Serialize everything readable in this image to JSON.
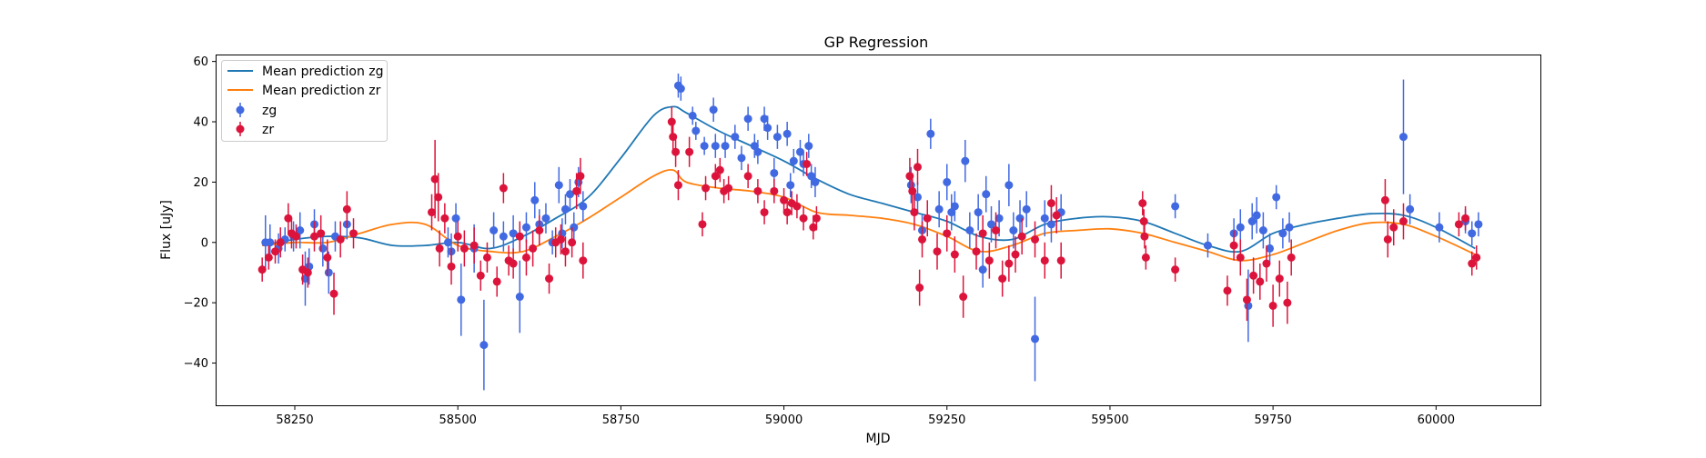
{
  "chart_data": {
    "type": "scatter",
    "title": "GP Regression",
    "xlabel": "MJD",
    "ylabel": "Flux [uJy]",
    "xlim": [
      58130,
      60160
    ],
    "ylim": [
      -54,
      62
    ],
    "xticks": [
      58250,
      58500,
      58750,
      59000,
      59250,
      59500,
      59750,
      60000
    ],
    "yticks": [
      -40,
      -20,
      0,
      20,
      40,
      60
    ],
    "grid": false,
    "legend_position": "top-left",
    "legend": [
      "Mean prediction zg",
      "Mean prediction zr",
      "zg",
      "zr"
    ],
    "lines": [
      {
        "name": "Mean prediction zg",
        "color": "#1f77b4",
        "x": [
          58200,
          58250,
          58300,
          58350,
          58400,
          58450,
          58500,
          58550,
          58600,
          58650,
          58700,
          58750,
          58800,
          58830,
          58850,
          58900,
          58950,
          59000,
          59050,
          59100,
          59150,
          59200,
          59250,
          59300,
          59350,
          59400,
          59450,
          59500,
          59550,
          59600,
          59650,
          59700,
          59750,
          59800,
          59850,
          59900,
          59950,
          60000,
          60060
        ],
        "y": [
          -1,
          1,
          2,
          1.5,
          -1,
          -1,
          0,
          -2,
          2,
          8,
          15,
          28,
          42,
          45,
          43,
          37,
          32,
          27,
          21,
          16,
          13,
          10,
          7,
          2,
          1,
          6,
          8,
          8.5,
          7,
          3,
          -1,
          -3,
          3,
          6,
          8,
          9.5,
          9,
          5,
          -2
        ]
      },
      {
        "name": "Mean prediction zr",
        "color": "#ff7f0e",
        "x": [
          58200,
          58250,
          58300,
          58350,
          58400,
          58450,
          58500,
          58550,
          58600,
          58650,
          58700,
          58750,
          58800,
          58830,
          58850,
          58900,
          58950,
          59000,
          59050,
          59100,
          59150,
          59200,
          59250,
          59300,
          59350,
          59400,
          59450,
          59500,
          59550,
          59600,
          59650,
          59700,
          59750,
          59800,
          59850,
          59900,
          59950,
          60000,
          60060
        ],
        "y": [
          -1,
          0,
          0,
          3,
          6,
          6,
          -1,
          -3,
          -3,
          2,
          8,
          15,
          22,
          24,
          20,
          18,
          17,
          15,
          10,
          9,
          8,
          6,
          2,
          -3,
          -1,
          3,
          4,
          4.5,
          3,
          0,
          -3,
          -6,
          -4,
          0,
          4,
          6.5,
          6,
          2,
          -4
        ]
      }
    ],
    "series": [
      {
        "name": "zg",
        "color": "#4169e1",
        "points": [
          [
            58205,
            0,
            9
          ],
          [
            58212,
            0,
            6
          ],
          [
            58225,
            -2,
            5
          ],
          [
            58235,
            1,
            4
          ],
          [
            58248,
            2,
            5
          ],
          [
            58258,
            4,
            6
          ],
          [
            58266,
            -12,
            9
          ],
          [
            58272,
            -8,
            6
          ],
          [
            58280,
            6,
            5
          ],
          [
            58293,
            -2,
            6
          ],
          [
            58302,
            -10,
            7
          ],
          [
            58312,
            2,
            5
          ],
          [
            58330,
            6,
            5
          ],
          [
            58485,
            0,
            5
          ],
          [
            58490,
            -3,
            6
          ],
          [
            58497,
            8,
            5
          ],
          [
            58505,
            -19,
            12
          ],
          [
            58525,
            -2,
            8
          ],
          [
            58540,
            -34,
            15
          ],
          [
            58555,
            4,
            6
          ],
          [
            58570,
            2,
            5
          ],
          [
            58585,
            3,
            6
          ],
          [
            58595,
            -18,
            12
          ],
          [
            58605,
            5,
            5
          ],
          [
            58618,
            14,
            6
          ],
          [
            58625,
            6,
            5
          ],
          [
            58635,
            8,
            5
          ],
          [
            58645,
            0,
            4
          ],
          [
            58655,
            19,
            6
          ],
          [
            58660,
            3,
            5
          ],
          [
            58665,
            11,
            5
          ],
          [
            58672,
            16,
            5
          ],
          [
            58678,
            5,
            5
          ],
          [
            58685,
            20,
            5
          ],
          [
            58692,
            12,
            5
          ],
          [
            58838,
            52,
            4
          ],
          [
            58842,
            51,
            4
          ],
          [
            58860,
            42,
            3
          ],
          [
            58865,
            37,
            3
          ],
          [
            58878,
            32,
            3
          ],
          [
            58892,
            44,
            4
          ],
          [
            58895,
            32,
            4
          ],
          [
            58910,
            32,
            4
          ],
          [
            58925,
            35,
            4
          ],
          [
            58935,
            28,
            4
          ],
          [
            58945,
            41,
            4
          ],
          [
            58955,
            32,
            4
          ],
          [
            58960,
            30,
            4
          ],
          [
            58970,
            41,
            4
          ],
          [
            58975,
            38,
            4
          ],
          [
            58985,
            23,
            5
          ],
          [
            58990,
            35,
            4
          ],
          [
            59005,
            36,
            4
          ],
          [
            59010,
            19,
            4
          ],
          [
            59015,
            27,
            4
          ],
          [
            59025,
            30,
            4
          ],
          [
            59030,
            26,
            4
          ],
          [
            59038,
            32,
            4
          ],
          [
            59042,
            22,
            4
          ],
          [
            59048,
            20,
            5
          ],
          [
            59195,
            19,
            6
          ],
          [
            59205,
            15,
            5
          ],
          [
            59212,
            4,
            5
          ],
          [
            59225,
            36,
            5
          ],
          [
            59238,
            11,
            6
          ],
          [
            59250,
            20,
            6
          ],
          [
            59257,
            10,
            6
          ],
          [
            59262,
            12,
            5
          ],
          [
            59278,
            27,
            7
          ],
          [
            59285,
            4,
            6
          ],
          [
            59298,
            10,
            6
          ],
          [
            59305,
            -9,
            6
          ],
          [
            59310,
            16,
            6
          ],
          [
            59318,
            6,
            6
          ],
          [
            59330,
            8,
            6
          ],
          [
            59345,
            19,
            7
          ],
          [
            59352,
            4,
            6
          ],
          [
            59362,
            8,
            6
          ],
          [
            59372,
            11,
            6
          ],
          [
            59385,
            -32,
            14
          ],
          [
            59400,
            8,
            6
          ],
          [
            59410,
            6,
            6
          ],
          [
            59425,
            10,
            6
          ],
          [
            59600,
            12,
            4
          ],
          [
            59650,
            -1,
            4
          ],
          [
            59690,
            3,
            5
          ],
          [
            59700,
            5,
            6
          ],
          [
            59712,
            -21,
            12
          ],
          [
            59718,
            7,
            6
          ],
          [
            59725,
            9,
            6
          ],
          [
            59735,
            4,
            6
          ],
          [
            59745,
            -2,
            5
          ],
          [
            59755,
            15,
            4
          ],
          [
            59765,
            3,
            5
          ],
          [
            59775,
            5,
            5
          ],
          [
            59950,
            35,
            19
          ],
          [
            59960,
            11,
            5
          ],
          [
            60005,
            5,
            5
          ],
          [
            60045,
            7,
            4
          ],
          [
            60055,
            3,
            4
          ],
          [
            60065,
            6,
            4
          ]
        ]
      },
      {
        "name": "zr",
        "color": "#dc143c",
        "points": [
          [
            58200,
            -9,
            4
          ],
          [
            58210,
            -5,
            4
          ],
          [
            58220,
            -3,
            4
          ],
          [
            58228,
            0,
            5
          ],
          [
            58240,
            8,
            5
          ],
          [
            58245,
            3,
            5
          ],
          [
            58252,
            2,
            4
          ],
          [
            58262,
            -9,
            5
          ],
          [
            58270,
            -10,
            5
          ],
          [
            58280,
            2,
            5
          ],
          [
            58290,
            3,
            6
          ],
          [
            58300,
            -5,
            6
          ],
          [
            58310,
            -17,
            7
          ],
          [
            58320,
            1,
            6
          ],
          [
            58330,
            11,
            6
          ],
          [
            58340,
            3,
            5
          ],
          [
            58460,
            10,
            6
          ],
          [
            58465,
            21,
            13
          ],
          [
            58470,
            15,
            8
          ],
          [
            58472,
            -2,
            6
          ],
          [
            58480,
            8,
            5
          ],
          [
            58490,
            -8,
            6
          ],
          [
            58500,
            2,
            5
          ],
          [
            58510,
            -2,
            6
          ],
          [
            58525,
            -1,
            6
          ],
          [
            58535,
            -11,
            5
          ],
          [
            58545,
            -5,
            5
          ],
          [
            58560,
            -13,
            5
          ],
          [
            58570,
            18,
            5
          ],
          [
            58578,
            -6,
            5
          ],
          [
            58585,
            -7,
            5
          ],
          [
            58595,
            2,
            5
          ],
          [
            58605,
            -5,
            6
          ],
          [
            58615,
            -2,
            6
          ],
          [
            58625,
            4,
            5
          ],
          [
            58640,
            -12,
            5
          ],
          [
            58650,
            0,
            5
          ],
          [
            58658,
            1,
            5
          ],
          [
            58665,
            -3,
            5
          ],
          [
            58675,
            0,
            5
          ],
          [
            58682,
            17,
            6
          ],
          [
            58688,
            22,
            6
          ],
          [
            58692,
            -6,
            6
          ],
          [
            58828,
            40,
            5
          ],
          [
            58830,
            35,
            5
          ],
          [
            58834,
            30,
            5
          ],
          [
            58838,
            19,
            5
          ],
          [
            58855,
            30,
            5
          ],
          [
            58875,
            6,
            4
          ],
          [
            58880,
            18,
            4
          ],
          [
            58895,
            22,
            4
          ],
          [
            58902,
            24,
            4
          ],
          [
            58908,
            17,
            4
          ],
          [
            58915,
            18,
            4
          ],
          [
            58945,
            22,
            4
          ],
          [
            58960,
            17,
            4
          ],
          [
            58970,
            10,
            4
          ],
          [
            58985,
            17,
            4
          ],
          [
            59000,
            14,
            4
          ],
          [
            59005,
            10,
            4
          ],
          [
            59012,
            13,
            4
          ],
          [
            59020,
            12,
            4
          ],
          [
            59030,
            8,
            4
          ],
          [
            59035,
            26,
            4
          ],
          [
            59045,
            5,
            4
          ],
          [
            59050,
            8,
            4
          ],
          [
            59193,
            22,
            6
          ],
          [
            59197,
            17,
            6
          ],
          [
            59200,
            10,
            6
          ],
          [
            59205,
            25,
            6
          ],
          [
            59208,
            -15,
            6
          ],
          [
            59212,
            1,
            6
          ],
          [
            59220,
            8,
            6
          ],
          [
            59235,
            -3,
            6
          ],
          [
            59250,
            3,
            6
          ],
          [
            59262,
            -4,
            6
          ],
          [
            59275,
            -18,
            7
          ],
          [
            59295,
            -3,
            6
          ],
          [
            59305,
            3,
            6
          ],
          [
            59315,
            -6,
            6
          ],
          [
            59325,
            4,
            6
          ],
          [
            59335,
            -12,
            6
          ],
          [
            59345,
            -7,
            6
          ],
          [
            59355,
            -4,
            6
          ],
          [
            59365,
            2,
            6
          ],
          [
            59385,
            1,
            6
          ],
          [
            59400,
            -6,
            6
          ],
          [
            59410,
            13,
            6
          ],
          [
            59418,
            9,
            6
          ],
          [
            59425,
            -6,
            6
          ],
          [
            59550,
            13,
            4
          ],
          [
            59552,
            7,
            4
          ],
          [
            59553,
            2,
            4
          ],
          [
            59555,
            -5,
            4
          ],
          [
            59600,
            -9,
            4
          ],
          [
            59680,
            -16,
            5
          ],
          [
            59690,
            -1,
            5
          ],
          [
            59700,
            -5,
            6
          ],
          [
            59710,
            -19,
            7
          ],
          [
            59720,
            -11,
            6
          ],
          [
            59730,
            -13,
            6
          ],
          [
            59740,
            -7,
            6
          ],
          [
            59750,
            -21,
            7
          ],
          [
            59760,
            -12,
            6
          ],
          [
            59772,
            -20,
            7
          ],
          [
            59778,
            -5,
            6
          ],
          [
            59922,
            14,
            7
          ],
          [
            59926,
            1,
            6
          ],
          [
            59935,
            5,
            6
          ],
          [
            59950,
            7,
            6
          ],
          [
            60035,
            6,
            4
          ],
          [
            60045,
            8,
            4
          ],
          [
            60055,
            -7,
            4
          ],
          [
            60062,
            -5,
            4
          ]
        ]
      }
    ]
  }
}
